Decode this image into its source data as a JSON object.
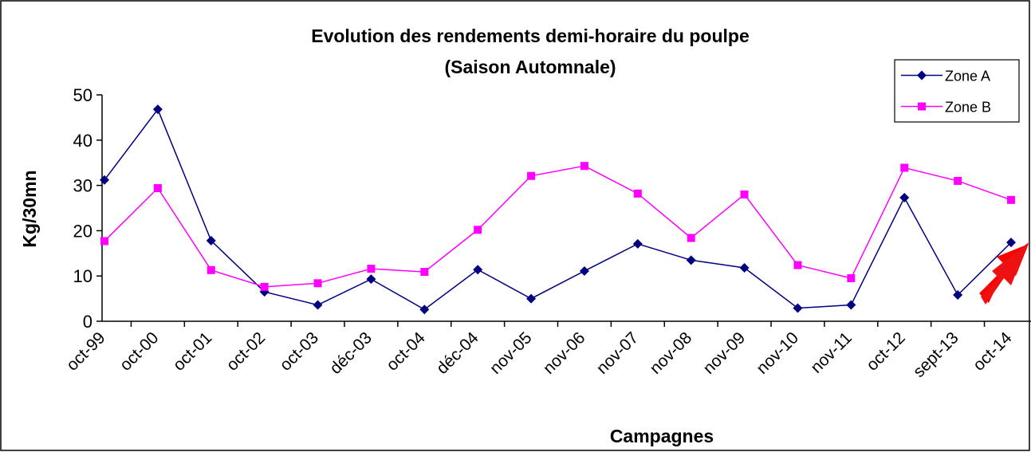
{
  "chart_data": {
    "type": "line",
    "title": "Evolution des rendements demi-horaire du poulpe",
    "subtitle": "(Saison Automnale)",
    "x_label": "Campagnes",
    "y_label": "Kg/30mn",
    "categories": [
      "oct-99",
      "oct-00",
      "oct-01",
      "oct-02",
      "oct-03",
      "déc-03",
      "oct-04",
      "déc-04",
      "nov-05",
      "nov-06",
      "nov-07",
      "nov-08",
      "nov-09",
      "nov-10",
      "nov-11",
      "oct-12",
      "sept-13",
      "oct-14"
    ],
    "series": [
      {
        "name": "Zone A",
        "color": "#000080",
        "marker": "diamond",
        "values": [
          31.2,
          46.8,
          17.8,
          6.5,
          3.6,
          9.3,
          2.6,
          11.4,
          5.0,
          11.1,
          17.1,
          13.5,
          11.8,
          2.9,
          3.6,
          27.3,
          5.8,
          17.4
        ]
      },
      {
        "name": "Zone B",
        "color": "#ff00ff",
        "marker": "square",
        "values": [
          17.7,
          29.4,
          11.3,
          7.6,
          8.4,
          11.6,
          10.9,
          20.2,
          32.1,
          34.3,
          28.2,
          18.4,
          28.0,
          12.4,
          9.5,
          33.9,
          31.0,
          26.8
        ]
      }
    ],
    "ylim": [
      0,
      50
    ],
    "yticks": [
      0,
      10,
      20,
      30,
      40,
      50
    ],
    "grid": false,
    "legend": "top-right"
  }
}
